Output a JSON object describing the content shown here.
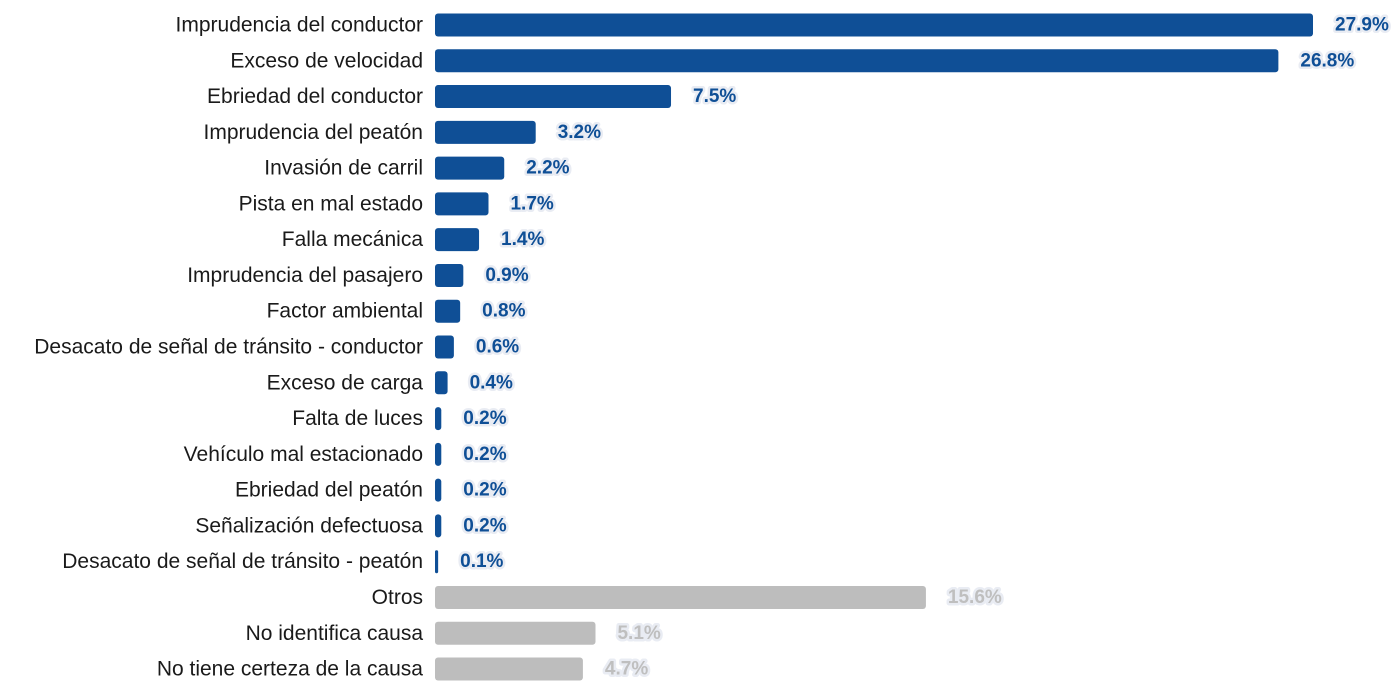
{
  "chart_data": {
    "type": "bar",
    "orientation": "horizontal",
    "title": "",
    "xlabel": "",
    "ylabel": "",
    "xlim": [
      0,
      27.9
    ],
    "grid": false,
    "legend": "none",
    "value_suffix": "%",
    "colors": {
      "primary": "#0f4f96",
      "secondary": "#bdbdbd",
      "secondary_label": "#bfbfbf"
    },
    "categories": [
      "Imprudencia del conductor",
      "Exceso de velocidad",
      "Ebriedad del conductor",
      "Imprudencia del peatón",
      "Invasión de carril",
      "Pista en mal estado",
      "Falla mecánica",
      "Imprudencia del pasajero",
      "Factor ambiental",
      "Desacato de señal de tránsito - conductor",
      "Exceso de carga",
      "Falta de luces",
      "Vehículo mal estacionado",
      "Ebriedad del peatón",
      "Señalización defectuosa",
      "Desacato de señal de tránsito - peatón",
      "Otros",
      "No identifica causa",
      "No tiene certeza de la causa"
    ],
    "values": [
      27.9,
      26.8,
      7.5,
      3.2,
      2.2,
      1.7,
      1.4,
      0.9,
      0.8,
      0.6,
      0.4,
      0.2,
      0.2,
      0.2,
      0.2,
      0.1,
      15.6,
      5.1,
      4.7
    ],
    "value_labels": [
      "27.9%",
      "26.8%",
      "7.5%",
      "3.2%",
      "2.2%",
      "1.7%",
      "1.4%",
      "0.9%",
      "0.8%",
      "0.6%",
      "0.4%",
      "0.2%",
      "0.2%",
      "0.2%",
      "0.2%",
      "0.1%",
      "15.6%",
      "5.1%",
      "4.7%"
    ],
    "group": [
      "primary",
      "primary",
      "primary",
      "primary",
      "primary",
      "primary",
      "primary",
      "primary",
      "primary",
      "primary",
      "primary",
      "primary",
      "primary",
      "primary",
      "primary",
      "primary",
      "secondary",
      "secondary",
      "secondary"
    ]
  }
}
